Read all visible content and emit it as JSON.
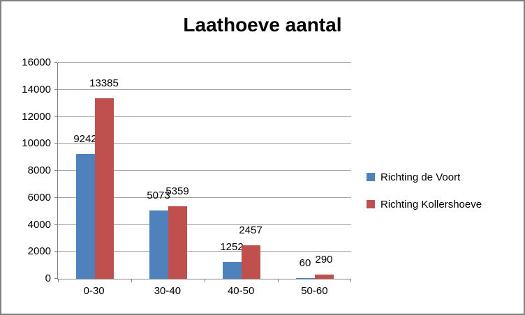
{
  "chart_data": {
    "type": "bar",
    "title": "Laathoeve aantal",
    "categories": [
      "0-30",
      "30-40",
      "40-50",
      "50-60"
    ],
    "series": [
      {
        "name": "Richting de Voort",
        "color": "#4F81BD",
        "values": [
          9242,
          5073,
          1252,
          60
        ]
      },
      {
        "name": "Richting Kollershoeve",
        "color": "#C0504D",
        "values": [
          13385,
          5359,
          2457,
          290
        ]
      }
    ],
    "xlabel": "",
    "ylabel": "",
    "ylim": [
      0,
      16000
    ],
    "ytick_step": 2000,
    "grid": true,
    "legend_position": "right",
    "value_labels": true
  }
}
